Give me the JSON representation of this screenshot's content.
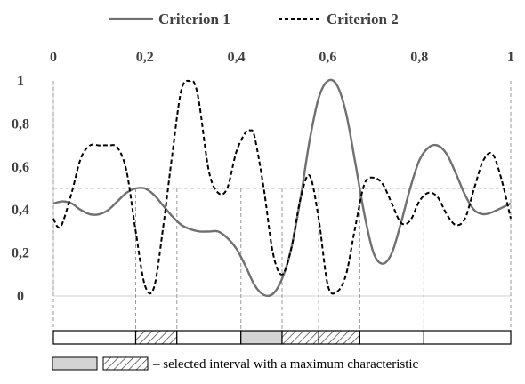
{
  "chart_data": {
    "type": "line",
    "title": "",
    "xlabel": "",
    "ylabel": "",
    "xlim": [
      0,
      1
    ],
    "ylim": [
      0,
      1
    ],
    "x_ticks": [
      "0",
      "0,2",
      "0,4",
      "0,6",
      "0,8",
      "1"
    ],
    "x_tick_values": [
      0,
      0.2,
      0.4,
      0.6,
      0.8,
      1
    ],
    "y_ticks": [
      "0",
      "0,2",
      "0,4",
      "0,6",
      "0,8",
      "1"
    ],
    "y_tick_values": [
      0,
      0.2,
      0.4,
      0.6,
      0.8,
      1
    ],
    "legend": {
      "placement": "top",
      "entries": [
        "Criterion 1",
        "Criterion 2"
      ]
    },
    "series": [
      {
        "name": "Criterion 1",
        "style": "solid",
        "color": "#707070",
        "x": [
          0,
          0.02,
          0.04,
          0.06,
          0.08,
          0.1,
          0.12,
          0.14,
          0.16,
          0.18,
          0.2,
          0.22,
          0.24,
          0.26,
          0.28,
          0.3,
          0.32,
          0.34,
          0.36,
          0.38,
          0.4,
          0.42,
          0.44,
          0.46,
          0.48,
          0.5,
          0.52,
          0.54,
          0.56,
          0.58,
          0.6,
          0.62,
          0.64,
          0.66,
          0.68,
          0.7,
          0.72,
          0.74,
          0.76,
          0.78,
          0.8,
          0.82,
          0.84,
          0.86,
          0.88,
          0.9,
          0.92,
          0.94,
          0.96,
          0.98,
          1
        ],
        "y": [
          0.43,
          0.44,
          0.43,
          0.4,
          0.38,
          0.38,
          0.4,
          0.44,
          0.48,
          0.5,
          0.5,
          0.47,
          0.42,
          0.37,
          0.33,
          0.31,
          0.3,
          0.3,
          0.3,
          0.27,
          0.22,
          0.14,
          0.05,
          0.005,
          0.01,
          0.08,
          0.22,
          0.45,
          0.72,
          0.92,
          1.0,
          0.98,
          0.85,
          0.62,
          0.38,
          0.2,
          0.15,
          0.2,
          0.34,
          0.5,
          0.63,
          0.69,
          0.7,
          0.66,
          0.57,
          0.47,
          0.4,
          0.38,
          0.39,
          0.41,
          0.43
        ]
      },
      {
        "name": "Criterion 2",
        "style": "dashed",
        "color": "#000000",
        "x": [
          0,
          0.01,
          0.02,
          0.04,
          0.06,
          0.08,
          0.1,
          0.12,
          0.14,
          0.16,
          0.18,
          0.2,
          0.22,
          0.24,
          0.26,
          0.28,
          0.3,
          0.31,
          0.32,
          0.34,
          0.36,
          0.38,
          0.4,
          0.42,
          0.43,
          0.44,
          0.46,
          0.48,
          0.5,
          0.52,
          0.54,
          0.56,
          0.58,
          0.6,
          0.62,
          0.64,
          0.66,
          0.68,
          0.7,
          0.72,
          0.74,
          0.76,
          0.78,
          0.8,
          0.82,
          0.84,
          0.86,
          0.88,
          0.9,
          0.92,
          0.94,
          0.96,
          0.98,
          1
        ],
        "y": [
          0.36,
          0.32,
          0.34,
          0.48,
          0.64,
          0.7,
          0.7,
          0.7,
          0.69,
          0.58,
          0.3,
          0.05,
          0.04,
          0.32,
          0.66,
          0.96,
          1.0,
          0.98,
          0.88,
          0.58,
          0.48,
          0.5,
          0.67,
          0.76,
          0.77,
          0.74,
          0.5,
          0.2,
          0.1,
          0.22,
          0.45,
          0.56,
          0.36,
          0.05,
          0.02,
          0.1,
          0.32,
          0.52,
          0.55,
          0.52,
          0.43,
          0.34,
          0.35,
          0.44,
          0.48,
          0.46,
          0.38,
          0.33,
          0.36,
          0.5,
          0.63,
          0.66,
          0.54,
          0.36
        ]
      }
    ],
    "reference_line": {
      "y": 0.5,
      "style": "dashed",
      "color": "#bbbbbb"
    },
    "interval_boundaries": [
      0,
      0.18,
      0.27,
      0.41,
      0.5,
      0.58,
      0.67,
      0.81,
      1
    ],
    "interval_fills": [
      "none",
      "hatched",
      "none",
      "gray",
      "hatched",
      "hatched",
      "none",
      "none"
    ],
    "note": "– selected interval with a maximum characteristic",
    "note_swatches": [
      "gray",
      "hatched"
    ]
  }
}
